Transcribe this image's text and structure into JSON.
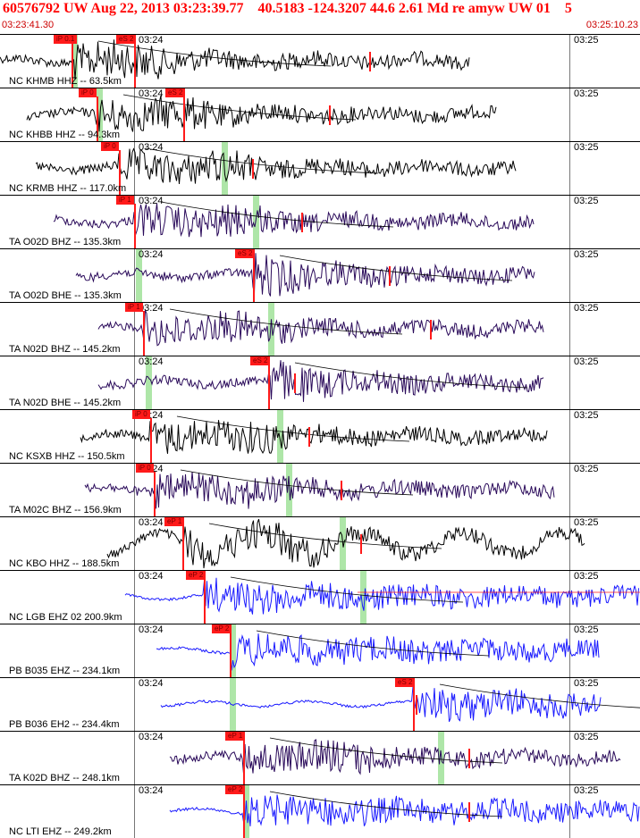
{
  "header": {
    "title": "60576792 UW Aug 22, 2013 03:23:39.77    40.5183 -124.3207 44.6 2.61 Md re amyw UW 01    5",
    "start_time": "03:23:41.30",
    "end_time": "03:25:10.23",
    "title_color": "#ff0000",
    "time_color": "#cc0000"
  },
  "tick_labels": {
    "t1": "03:24",
    "t2": "03:25"
  },
  "colors": {
    "pick": "#ff1a1a",
    "moveout": "#c8ecc4",
    "black": "#000000",
    "purple": "#2a0a5a",
    "blue": "#1a1aff"
  },
  "panels": [
    {
      "label": "NC KHMB HHZ -- 63.5km",
      "pick1": "iP 0.1",
      "pick2": "eS 2",
      "color": "black",
      "amp": 1.0
    },
    {
      "label": "NC KHBB HHZ -- 94.3km",
      "pick1": "iP 0",
      "pick2": "eS 2",
      "color": "black",
      "amp": 1.0
    },
    {
      "label": "NC KRMB HHZ -- 117.0km",
      "pick1": "iP 0",
      "pick2": "",
      "color": "black",
      "amp": 1.0
    },
    {
      "label": "TA O02D BHZ -- 135.3km",
      "pick1": "iP 1",
      "pick2": "",
      "color": "purple",
      "amp": 1.0
    },
    {
      "label": "TA O02D BHE -- 135.3km",
      "pick1": "",
      "pick2": "eS 2",
      "color": "purple",
      "amp": 1.0
    },
    {
      "label": "TA N02D BHZ -- 145.2km",
      "pick1": "iP 1",
      "pick2": "",
      "color": "purple",
      "amp": 1.0
    },
    {
      "label": "TA N02D BHE -- 145.2km",
      "pick1": "",
      "pick2": "eS 2",
      "color": "purple",
      "amp": 1.0
    },
    {
      "label": "NC KSXB HHZ -- 150.5km",
      "pick1": "iP 0",
      "pick2": "",
      "color": "black",
      "amp": 1.0
    },
    {
      "label": "TA M02C BHZ -- 156.9km",
      "pick1": "iP 0",
      "pick2": "",
      "color": "purple",
      "amp": 1.0
    },
    {
      "label": "NC KBO HHZ -- 188.5km",
      "pick1": "eP 1",
      "pick2": "",
      "color": "black",
      "amp": 1.0
    },
    {
      "label": "NC LGB EHZ 02 200.9km",
      "pick1": "eP 2",
      "pick2": "",
      "color": "blue",
      "amp": 1.0
    },
    {
      "label": "PB B035 EHZ -- 234.1km",
      "pick1": "eP 2",
      "pick2": "",
      "color": "blue",
      "amp": 1.0
    },
    {
      "label": "PB B036 EH2 -- 234.4km",
      "pick1": "",
      "pick2": "eS 2",
      "color": "blue",
      "amp": 1.0
    },
    {
      "label": "TA K02D BHZ -- 248.1km",
      "pick1": "eP 1",
      "pick2": "",
      "color": "purple",
      "amp": 1.0
    },
    {
      "label": "NC LTI EHZ -- 249.2km",
      "pick1": "eP 2",
      "pick2": "",
      "color": "blue",
      "amp": 1.0
    }
  ]
}
